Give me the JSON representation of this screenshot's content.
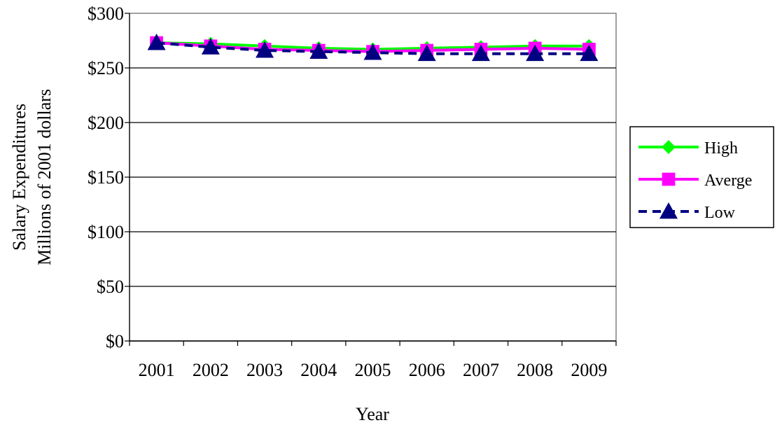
{
  "chart_data": {
    "type": "line",
    "title": "",
    "xlabel": "Year",
    "ylabel_lines": [
      "Salary Expenditures",
      "Millions of 2001 dollars"
    ],
    "categories": [
      "2001",
      "2002",
      "2003",
      "2004",
      "2005",
      "2006",
      "2007",
      "2008",
      "2009"
    ],
    "ylim": [
      0,
      300
    ],
    "yticks": [
      0,
      50,
      100,
      150,
      200,
      250,
      300
    ],
    "ytick_labels": [
      "$0",
      "$50",
      "$100",
      "$150",
      "$200",
      "$250",
      "$300"
    ],
    "grid": "horizontal",
    "legend_position": "right",
    "series": [
      {
        "name": "High",
        "color": "#00ff00",
        "marker": "diamond",
        "line": "solid",
        "values": [
          273,
          272,
          270,
          268,
          267,
          268,
          269,
          270,
          270
        ]
      },
      {
        "name": "Averge",
        "color": "#ff00ff",
        "marker": "square",
        "line": "solid",
        "values": [
          273,
          270,
          267,
          266,
          265,
          266,
          267,
          268,
          267
        ]
      },
      {
        "name": "Low",
        "color": "#000080",
        "marker": "triangle",
        "line": "dashed",
        "values": [
          273,
          269,
          266,
          265,
          264,
          263,
          263,
          263,
          263
        ]
      }
    ]
  }
}
